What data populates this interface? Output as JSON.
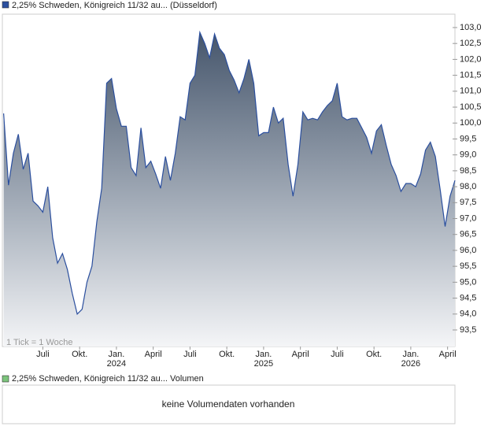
{
  "chart_data": {
    "type": "area",
    "title": "2,25% Schweden, Königreich 11/32 au... (Düsseldorf)",
    "note": "1 Tick = 1 Woche",
    "color": "#2b4f9e",
    "legend_color": "#2b4f9e",
    "x": [
      2.8,
      3.2,
      3.6,
      4.0,
      4.4,
      4.8,
      5.2,
      5.6,
      6.0,
      6.4,
      6.8,
      7.2,
      7.6,
      8.0,
      8.4,
      8.8,
      9.2,
      9.6,
      10.0,
      10.4,
      10.8,
      11.2,
      11.6,
      12.0,
      12.4,
      12.8,
      13.2,
      13.6,
      14.0,
      14.4,
      14.8,
      15.2,
      15.6,
      16.0,
      16.4,
      16.8,
      17.2,
      17.6,
      18.0,
      18.4,
      18.8,
      19.2,
      19.6,
      20.0,
      20.4,
      20.8,
      21.2,
      21.6,
      22.0,
      22.4,
      22.8,
      23.2,
      23.6,
      24.0,
      24.4,
      24.8,
      25.2,
      25.6,
      26.0,
      26.4,
      26.8,
      27.2,
      27.6,
      28.0,
      28.4,
      28.8,
      29.2,
      29.6,
      30.0,
      30.4,
      30.8,
      31.2,
      31.6,
      32.0,
      32.4,
      32.8,
      33.2,
      33.6,
      34.0,
      34.4,
      34.8,
      35.2,
      35.6,
      36.0,
      36.4,
      36.8,
      37.2,
      37.6,
      38.0,
      38.4,
      38.8,
      39.2,
      39.6
    ],
    "values": [
      100.3,
      98.05,
      99.05,
      99.65,
      98.55,
      99.05,
      97.55,
      97.4,
      97.2,
      98.0,
      96.4,
      95.6,
      95.9,
      95.4,
      94.65,
      94.0,
      94.15,
      95.0,
      95.5,
      96.9,
      97.95,
      101.25,
      101.4,
      100.45,
      99.9,
      99.9,
      98.6,
      98.35,
      99.85,
      98.6,
      98.8,
      98.4,
      97.95,
      98.95,
      98.2,
      99.05,
      100.2,
      100.1,
      101.25,
      101.5,
      102.85,
      102.5,
      102.05,
      102.8,
      102.35,
      102.15,
      101.65,
      101.35,
      100.95,
      101.4,
      102.0,
      101.25,
      99.6,
      99.7,
      99.7,
      100.5,
      100.0,
      100.15,
      98.7,
      97.7,
      98.7,
      100.35,
      100.1,
      100.15,
      100.1,
      100.35,
      100.55,
      100.7,
      101.25,
      100.2,
      100.1,
      100.15,
      100.15,
      99.85,
      99.55,
      99.05,
      99.75,
      99.95,
      99.3,
      98.7,
      98.35,
      97.85,
      98.1,
      98.1,
      98.0,
      98.4,
      99.15,
      99.4,
      98.95,
      97.9,
      96.75,
      97.7,
      98.2
    ],
    "xlim": [
      2.7,
      39.6
    ],
    "ylim": [
      92.98,
      103.42
    ],
    "xticks": [
      {
        "value": 6,
        "label": "Juli"
      },
      {
        "value": 9,
        "label": "Okt."
      },
      {
        "value": 12,
        "label": "Jan."
      },
      {
        "value": 15,
        "label": "April"
      },
      {
        "value": 18,
        "label": "Juli"
      },
      {
        "value": 21,
        "label": "Okt."
      },
      {
        "value": 24,
        "label": "Jan."
      },
      {
        "value": 27,
        "label": "April"
      },
      {
        "value": 30,
        "label": "Juli"
      },
      {
        "value": 33,
        "label": "Okt."
      },
      {
        "value": 36,
        "label": "Jan."
      },
      {
        "value": 39,
        "label": "April"
      }
    ],
    "year_ticks": [
      {
        "value": 12,
        "label": "2024"
      },
      {
        "value": 24,
        "label": "2025"
      },
      {
        "value": 36,
        "label": "2026"
      }
    ],
    "yticks": [
      {
        "value": 93.5,
        "label": "93,5"
      },
      {
        "value": 94.0,
        "label": "94,0"
      },
      {
        "value": 94.5,
        "label": "94,5"
      },
      {
        "value": 95.0,
        "label": "95,0"
      },
      {
        "value": 95.5,
        "label": "95,5"
      },
      {
        "value": 96.0,
        "label": "96,0"
      },
      {
        "value": 96.5,
        "label": "96,5"
      },
      {
        "value": 97.0,
        "label": "97,0"
      },
      {
        "value": 97.5,
        "label": "97,5"
      },
      {
        "value": 98.0,
        "label": "98,0"
      },
      {
        "value": 98.5,
        "label": "98,5"
      },
      {
        "value": 99.0,
        "label": "99,0"
      },
      {
        "value": 99.5,
        "label": "99,5"
      },
      {
        "value": 100.0,
        "label": "100,0"
      },
      {
        "value": 100.5,
        "label": "100,5"
      },
      {
        "value": 101.0,
        "label": "101,0"
      },
      {
        "value": 101.5,
        "label": "101,5"
      },
      {
        "value": 102.0,
        "label": "102,0"
      },
      {
        "value": 102.5,
        "label": "102,5"
      },
      {
        "value": 103.0,
        "label": "103,0"
      }
    ],
    "grid": false
  },
  "volume_panel": {
    "title": "2,25% Schweden, Königreich 11/32 au... Volumen",
    "legend_color": "#7cc47c",
    "message": "keine Volumendaten vorhanden"
  }
}
